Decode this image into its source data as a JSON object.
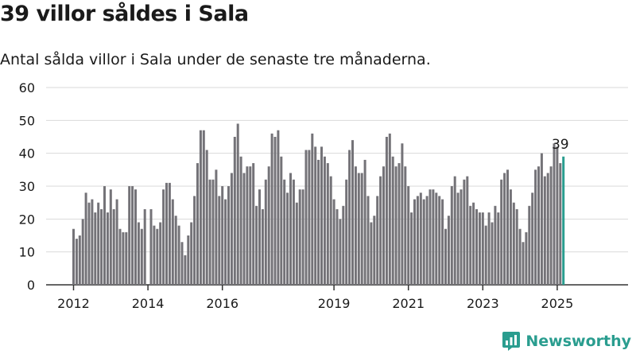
{
  "title": "39 villor såldes i Sala",
  "subtitle": "Antal sålda villor i Sala under de senaste tre månaderna.",
  "brand": {
    "label": "Newsworthy",
    "icon": "newsworthy-logo-icon"
  },
  "colors": {
    "bar": "#747378",
    "highlight": "#2a9d8f",
    "grid": "#d9d9d9",
    "text": "#1a1a1a"
  },
  "chart_data": {
    "type": "bar",
    "title": "39 villor såldes i Sala",
    "subtitle": "Antal sålda villor i Sala under de senaste tre månaderna.",
    "xlabel": "",
    "ylabel": "",
    "ylim": [
      0,
      60
    ],
    "yticks": [
      0,
      10,
      20,
      30,
      40,
      50,
      60
    ],
    "grid": true,
    "x_start": "2012-01",
    "x_ticks": [
      {
        "label": "2012",
        "month": "2012-01"
      },
      {
        "label": "2014",
        "month": "2014-01"
      },
      {
        "label": "2016",
        "month": "2016-01"
      },
      {
        "label": "2019",
        "month": "2019-01"
      },
      {
        "label": "2021",
        "month": "2021-01"
      },
      {
        "label": "2023",
        "month": "2023-01"
      },
      {
        "label": "2025",
        "month": "2025-01"
      }
    ],
    "annotation": {
      "label": "39",
      "value": 39,
      "month": "2025-02"
    },
    "values": [
      17,
      14,
      15,
      20,
      28,
      25,
      26,
      22,
      25,
      23,
      30,
      22,
      29,
      23,
      26,
      17,
      16,
      16,
      30,
      30,
      29,
      19,
      17,
      23,
      0,
      23,
      18,
      17,
      19,
      29,
      31,
      31,
      26,
      21,
      18,
      13,
      9,
      15,
      19,
      27,
      37,
      47,
      47,
      41,
      32,
      32,
      35,
      27,
      30,
      26,
      30,
      34,
      45,
      49,
      39,
      34,
      36,
      36,
      37,
      24,
      29,
      23,
      32,
      36,
      46,
      45,
      47,
      39,
      32,
      28,
      34,
      32,
      25,
      29,
      29,
      41,
      41,
      46,
      42,
      38,
      42,
      39,
      37,
      33,
      26,
      23,
      20,
      24,
      32,
      41,
      44,
      36,
      34,
      34,
      38,
      27,
      19,
      21,
      27,
      33,
      36,
      45,
      46,
      39,
      36,
      37,
      43,
      36,
      30,
      22,
      26,
      27,
      28,
      26,
      27,
      29,
      29,
      28,
      27,
      26,
      17,
      21,
      30,
      33,
      28,
      29,
      32,
      33,
      24,
      25,
      23,
      22,
      22,
      18,
      22,
      19,
      24,
      22,
      32,
      34,
      35,
      29,
      25,
      23,
      17,
      13,
      16,
      24,
      28,
      35,
      36,
      40,
      33,
      34,
      36,
      43,
      42,
      37,
      39
    ]
  }
}
